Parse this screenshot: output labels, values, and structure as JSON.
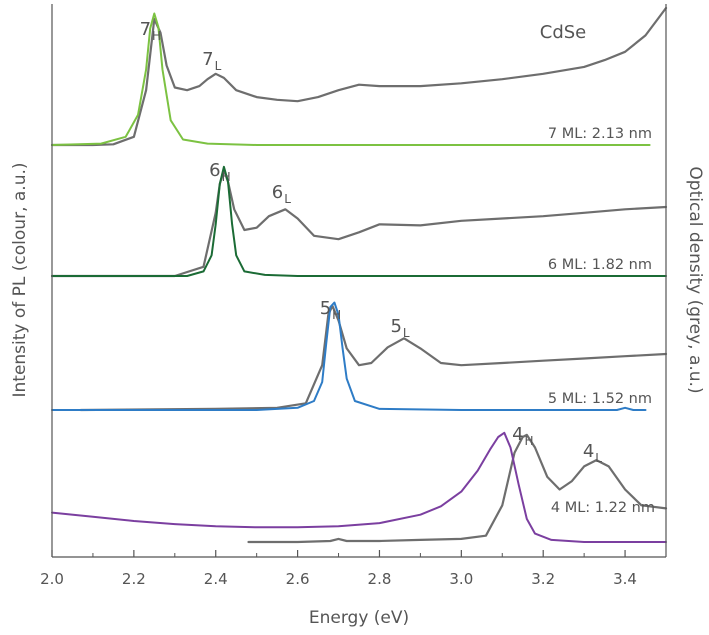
{
  "chart_data": {
    "type": "line",
    "title": "",
    "material": "CdSe",
    "xlabel": "Energy (eV)",
    "ylabel_left": "Intensity of PL (colour, a.u.)",
    "ylabel_right": "Optical density (grey, a.u.)",
    "xlim": [
      2.0,
      3.5
    ],
    "x_ticks": [
      2.0,
      2.2,
      2.4,
      2.6,
      2.8,
      3.0,
      3.2,
      3.4
    ],
    "x_tick_labels": [
      "2.0",
      "2.2",
      "2.4",
      "2.6",
      "2.8",
      "3.0",
      "3.2",
      "3.4"
    ],
    "colors": {
      "absorption": "#6e6e6e",
      "pl_7ML": "#7cc242",
      "pl_6ML": "#1b6b35",
      "pl_5ML": "#2e7cc6",
      "pl_4ML": "#7b3fa0"
    },
    "panels": [
      {
        "label": "7 ML: 2.13 nm",
        "pl_color_key": "pl_7ML",
        "peaks": [
          {
            "name": "7",
            "sub": "H",
            "energy": 2.25
          },
          {
            "name": "7",
            "sub": "L",
            "energy": 2.4
          }
        ],
        "series": [
          {
            "kind": "absorption",
            "x": [
              2.0,
              2.1,
              2.15,
              2.2,
              2.23,
              2.25,
              2.265,
              2.28,
              2.3,
              2.33,
              2.36,
              2.38,
              2.4,
              2.42,
              2.45,
              2.5,
              2.55,
              2.6,
              2.65,
              2.7,
              2.75,
              2.8,
              2.9,
              3.0,
              3.1,
              3.2,
              3.3,
              3.35,
              3.4,
              3.45,
              3.48,
              3.5
            ],
            "y": [
              0.0,
              0.0,
              0.005,
              0.06,
              0.4,
              0.92,
              0.82,
              0.58,
              0.42,
              0.4,
              0.43,
              0.48,
              0.52,
              0.49,
              0.4,
              0.35,
              0.33,
              0.32,
              0.35,
              0.4,
              0.44,
              0.43,
              0.43,
              0.45,
              0.48,
              0.52,
              0.57,
              0.62,
              0.68,
              0.8,
              0.92,
              1.0
            ]
          },
          {
            "kind": "pl",
            "x": [
              2.0,
              2.12,
              2.18,
              2.21,
              2.23,
              2.24,
              2.25,
              2.26,
              2.27,
              2.29,
              2.32,
              2.38,
              2.5,
              3.46
            ],
            "y": [
              0.0,
              0.01,
              0.06,
              0.22,
              0.55,
              0.85,
              0.96,
              0.86,
              0.55,
              0.18,
              0.04,
              0.01,
              0.0,
              0.0
            ]
          }
        ]
      },
      {
        "label": "6 ML: 1.82 nm",
        "pl_color_key": "pl_6ML",
        "peaks": [
          {
            "name": "6",
            "sub": "H",
            "energy": 2.42
          },
          {
            "name": "6",
            "sub": "L",
            "energy": 2.57
          }
        ],
        "series": [
          {
            "kind": "absorption",
            "x": [
              2.0,
              2.3,
              2.37,
              2.4,
              2.41,
              2.42,
              2.43,
              2.445,
              2.47,
              2.5,
              2.53,
              2.57,
              2.6,
              2.64,
              2.7,
              2.75,
              2.8,
              2.9,
              3.0,
              3.1,
              3.2,
              3.3,
              3.4,
              3.5
            ],
            "y": [
              0.0,
              0.0,
              0.08,
              0.55,
              0.8,
              0.92,
              0.82,
              0.58,
              0.4,
              0.42,
              0.52,
              0.58,
              0.5,
              0.35,
              0.32,
              0.38,
              0.45,
              0.44,
              0.48,
              0.5,
              0.52,
              0.55,
              0.58,
              0.6
            ]
          },
          {
            "kind": "pl",
            "x": [
              2.0,
              2.33,
              2.37,
              2.39,
              2.4,
              2.41,
              2.42,
              2.43,
              2.44,
              2.45,
              2.47,
              2.52,
              2.6,
              3.5
            ],
            "y": [
              0.0,
              0.0,
              0.04,
              0.18,
              0.45,
              0.8,
              0.95,
              0.82,
              0.45,
              0.18,
              0.04,
              0.01,
              0.0,
              0.0
            ]
          }
        ]
      },
      {
        "label": "5 ML: 1.52 nm",
        "pl_color_key": "pl_5ML",
        "peaks": [
          {
            "name": "5",
            "sub": "H",
            "energy": 2.69
          },
          {
            "name": "5",
            "sub": "L",
            "energy": 2.86
          }
        ],
        "series": [
          {
            "kind": "absorption",
            "x": [
              2.07,
              2.4,
              2.55,
              2.62,
              2.66,
              2.675,
              2.685,
              2.7,
              2.72,
              2.75,
              2.78,
              2.82,
              2.86,
              2.9,
              2.95,
              3.0,
              3.1,
              3.2,
              3.3,
              3.4,
              3.5
            ],
            "y": [
              0.0,
              0.01,
              0.02,
              0.06,
              0.4,
              0.85,
              0.93,
              0.8,
              0.55,
              0.4,
              0.42,
              0.56,
              0.64,
              0.55,
              0.42,
              0.4,
              0.42,
              0.44,
              0.46,
              0.48,
              0.5
            ]
          },
          {
            "kind": "pl",
            "x": [
              2.0,
              2.5,
              2.6,
              2.64,
              2.66,
              2.67,
              2.68,
              2.69,
              2.7,
              2.71,
              2.72,
              2.74,
              2.8,
              3.0,
              3.38,
              3.4,
              3.42,
              3.45
            ],
            "y": [
              0.0,
              0.0,
              0.02,
              0.08,
              0.25,
              0.6,
              0.92,
              0.96,
              0.85,
              0.55,
              0.28,
              0.08,
              0.01,
              0.0,
              0.0,
              0.02,
              0.0,
              0.0
            ]
          }
        ]
      },
      {
        "label": "4 ML: 1.22 nm",
        "pl_color_key": "pl_4ML",
        "peaks": [
          {
            "name": "4",
            "sub": "H",
            "energy": 3.16
          },
          {
            "name": "4",
            "sub": "L",
            "energy": 3.33
          }
        ],
        "series": [
          {
            "kind": "absorption",
            "x": [
              2.48,
              2.6,
              2.68,
              2.7,
              2.72,
              2.8,
              2.9,
              3.0,
              3.06,
              3.1,
              3.13,
              3.15,
              3.16,
              3.18,
              3.21,
              3.24,
              3.27,
              3.3,
              3.33,
              3.36,
              3.4,
              3.44,
              3.5
            ],
            "y": [
              0.0,
              0.0,
              0.01,
              0.03,
              0.01,
              0.01,
              0.02,
              0.03,
              0.06,
              0.35,
              0.85,
              1.0,
              1.02,
              0.9,
              0.62,
              0.5,
              0.58,
              0.72,
              0.78,
              0.72,
              0.5,
              0.35,
              0.32
            ]
          },
          {
            "kind": "pl",
            "x": [
              2.0,
              2.1,
              2.2,
              2.3,
              2.4,
              2.5,
              2.6,
              2.7,
              2.8,
              2.9,
              2.95,
              3.0,
              3.04,
              3.07,
              3.09,
              3.105,
              3.12,
              3.14,
              3.16,
              3.18,
              3.22,
              3.3,
              3.5
            ],
            "y": [
              0.28,
              0.24,
              0.2,
              0.17,
              0.15,
              0.14,
              0.14,
              0.15,
              0.18,
              0.26,
              0.34,
              0.48,
              0.68,
              0.88,
              1.0,
              1.04,
              0.9,
              0.55,
              0.22,
              0.08,
              0.02,
              0.0,
              0.0
            ]
          }
        ]
      }
    ]
  }
}
